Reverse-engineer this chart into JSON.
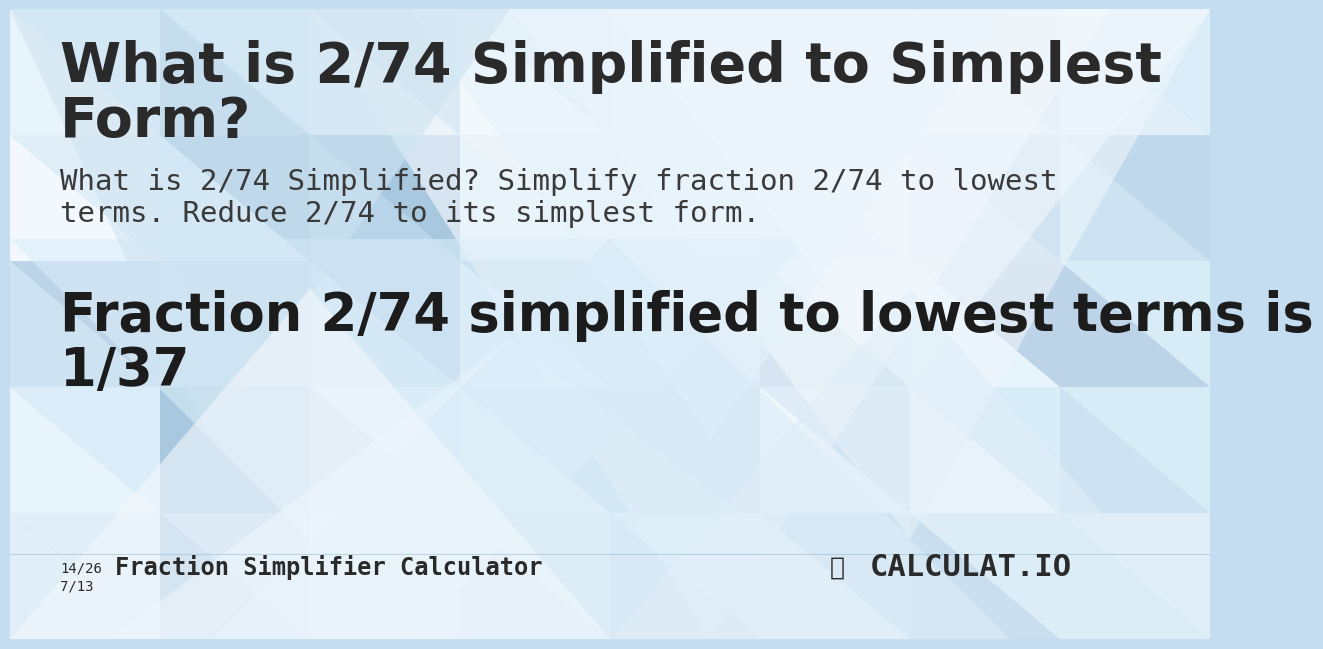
{
  "title_line1": "What is 2/74 Simplified to Simplest",
  "title_line2": "Form?",
  "subtitle_line1": "What is 2/74 Simplified? Simplify fraction 2/74 to lowest",
  "subtitle_line2": "terms. Reduce 2/74 to its simplest form.",
  "result_line1": "Fraction 2/74 simplified to lowest terms is",
  "result_line2": "1/37",
  "footer_fraction_top": "14/26",
  "footer_fraction_bottom": "7/13",
  "footer_text": "Fraction Simplifier Calculator",
  "footer_logo": "CALCULAT.IO",
  "bg_base": "#c5ddf0",
  "title_color": "#2a2a2a",
  "subtitle_color": "#3a3a3a",
  "result_color": "#1c1c1c",
  "footer_color": "#2a2a2a",
  "title_fontsize": 40,
  "subtitle_fontsize": 21,
  "result_fontsize": 38,
  "footer_fontsize": 17,
  "tri_colors": [
    "#d8ecf8",
    "#bdd4ea",
    "#cce2f4",
    "#e2f0fa",
    "#b8d0e8",
    "#daedf9",
    "#c0d8ec",
    "#e8f3fb",
    "#b0cce6",
    "#d4e8f6",
    "#f0f7fc",
    "#c8dff0",
    "#a8c8e2",
    "#e0eef8",
    "#d0e4f4"
  ],
  "tri_white": "#f5faff",
  "tri_mid": "#c0d8ee",
  "tri_dark": "#a8c4dc"
}
